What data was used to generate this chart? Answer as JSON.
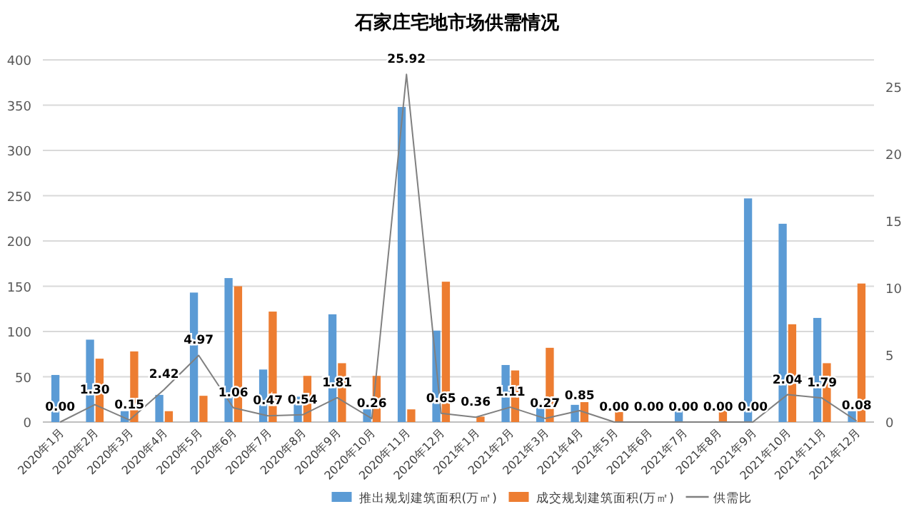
{
  "chart_data": {
    "type": "bar",
    "title": "石家庄宅地市场供需情况",
    "categories": [
      "2020年1月",
      "2020年2月",
      "2020年3月",
      "2020年4月",
      "2020年5月",
      "2020年6月",
      "2020年7月",
      "2020年8月",
      "2020年9月",
      "2020年10月",
      "2020年11月",
      "2020年12月",
      "2021年1月",
      "2021年2月",
      "2021年3月",
      "2021年4月",
      "2021年5月",
      "2021年6月",
      "2021年7月",
      "2021年8月",
      "2021年9月",
      "2021年10月",
      "2021年11月",
      "2021年12月"
    ],
    "series": [
      {
        "name": "推出规划建筑面积(万㎡)",
        "color": "#5b9bd5",
        "values": [
          52,
          91,
          12,
          30,
          143,
          159,
          58,
          28,
          119,
          14,
          348,
          101,
          0,
          63,
          21,
          19,
          0,
          0,
          16,
          0,
          247,
          219,
          115,
          12
        ]
      },
      {
        "name": "成交规划建筑面积(万㎡)",
        "color": "#ed7d31",
        "values": [
          0,
          70,
          78,
          12,
          29,
          150,
          122,
          51,
          65,
          51,
          14,
          155,
          6,
          57,
          82,
          22,
          11,
          0,
          0,
          15,
          0,
          108,
          65,
          153
        ]
      },
      {
        "name": "供需比",
        "type": "line",
        "axis": "y2",
        "color": "#808080",
        "value_labels": [
          "0.00",
          "1.30",
          "0.15",
          "2.42",
          "4.97",
          "1.06",
          "0.47",
          "0.54",
          "1.81",
          "0.26",
          "25.92",
          "0.65",
          "0.36",
          "1.11",
          "0.27",
          "0.85",
          "0.00",
          "0.00",
          "0.00",
          "0.00",
          "0.00",
          "2.04",
          "1.79",
          "0.08"
        ],
        "values": [
          0.0,
          1.3,
          0.15,
          2.42,
          4.97,
          1.06,
          0.47,
          0.54,
          1.81,
          0.26,
          25.92,
          0.65,
          0.36,
          1.11,
          0.27,
          0.85,
          0.0,
          0.0,
          0.0,
          0.0,
          0.0,
          2.04,
          1.79,
          0.08
        ]
      }
    ],
    "ylim": [
      0,
      400
    ],
    "yticks": [
      0,
      50,
      100,
      150,
      200,
      250,
      300,
      350,
      400
    ],
    "y2lim": [
      0,
      27
    ],
    "y2ticks": [
      0,
      5,
      10,
      15,
      20,
      25
    ],
    "grid": "y",
    "legend": "bottom"
  }
}
